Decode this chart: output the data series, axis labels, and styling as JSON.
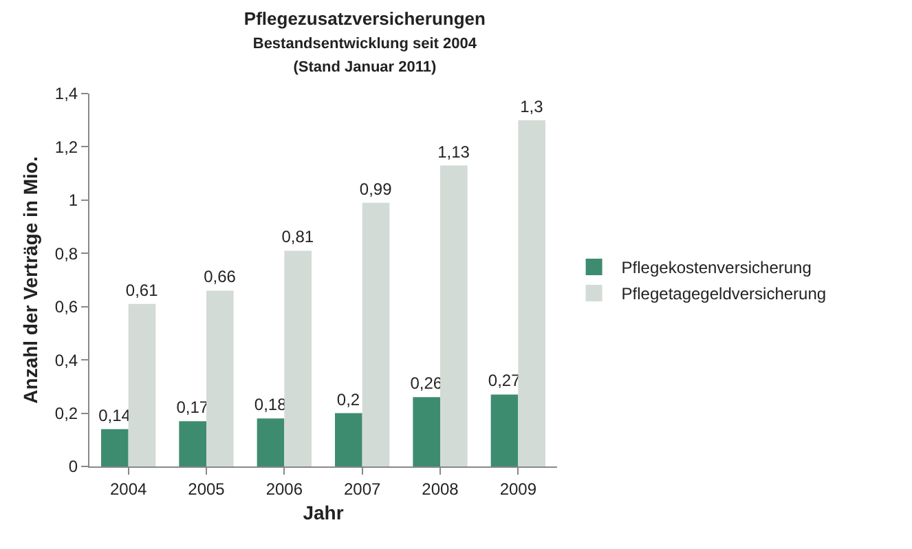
{
  "chart_data": {
    "type": "bar",
    "title": "Pflegezusatzversicherungen",
    "subtitle": "Bestandsentwicklung seit 2004\n(Stand Januar 2011)",
    "xlabel": "Jahr",
    "ylabel": "Anzahl der Verträge in Mio.",
    "categories": [
      "2004",
      "2005",
      "2006",
      "2007",
      "2008",
      "2009"
    ],
    "series": [
      {
        "name": "Pflegekostenversicherung",
        "color": "#3e8c6f",
        "values": [
          0.14,
          0.17,
          0.18,
          0.2,
          0.26,
          0.27
        ],
        "value_labels": [
          "0,14",
          "0,17",
          "0,18",
          "0,2",
          "0,26",
          "0,27"
        ]
      },
      {
        "name": "Pflegetagegeldversicherung",
        "color": "#d3dbd6",
        "values": [
          0.61,
          0.66,
          0.81,
          0.99,
          1.13,
          1.3
        ],
        "value_labels": [
          "0,61",
          "0,66",
          "0,81",
          "0,99",
          "1,13",
          "1,3"
        ]
      }
    ],
    "ylim": [
      0,
      1.4
    ],
    "yticks": [
      0,
      {
        "value": 0.2,
        "label": "0,2"
      },
      {
        "value": 0.4,
        "label": "0,4"
      },
      {
        "value": 0.6,
        "label": "0,6"
      },
      {
        "value": 0.8,
        "label": "0,8"
      },
      1,
      {
        "value": 1.2,
        "label": "1,2"
      },
      {
        "value": 1.4,
        "label": "1,4"
      }
    ],
    "grid": false,
    "legend": "right"
  }
}
